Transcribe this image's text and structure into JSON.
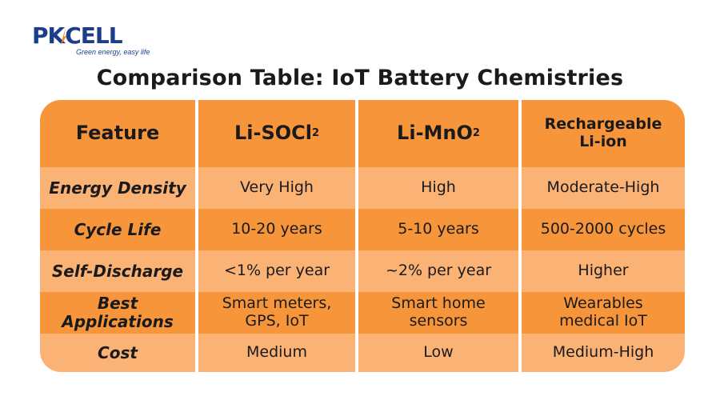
{
  "logo": {
    "text_pre": "PK",
    "text_k": "",
    "text_post": "CELL",
    "tagline": "Green energy, easy life"
  },
  "title": "Comparison Table: IoT Battery Chemistries",
  "table": {
    "headers": [
      {
        "main": "Feature",
        "sub": ""
      },
      {
        "main": "Li-SOCl",
        "sub": "2"
      },
      {
        "main": "Li-MnO",
        "sub": "2"
      },
      {
        "main": "Rechargeable Li-ion",
        "sub": ""
      }
    ],
    "rows": [
      {
        "feature": "Energy Density",
        "li_socl2": "Very High",
        "li_mno2": "High",
        "li_ion": "Moderate-High"
      },
      {
        "feature": "Cycle Life",
        "li_socl2": "10-20 years",
        "li_mno2": "5-10 years",
        "li_ion": "500-2000 cycles"
      },
      {
        "feature": "Self-Discharge",
        "li_socl2": "<1% per year",
        "li_mno2": "~2% per year",
        "li_ion": "Higher"
      },
      {
        "feature": "Best Applications",
        "li_socl2": "Smart meters, GPS, IoT",
        "li_mno2": "Smart home sensors",
        "li_ion": "Wearables medical IoT"
      },
      {
        "feature": "Cost",
        "li_socl2": "Medium",
        "li_mno2": "Low",
        "li_ion": "Medium-High"
      }
    ]
  },
  "colors": {
    "header_orange": "#f7953a",
    "light_orange": "#fbb275",
    "logo_blue": "#1a3e8c",
    "logo_orange": "#f28a1e"
  }
}
